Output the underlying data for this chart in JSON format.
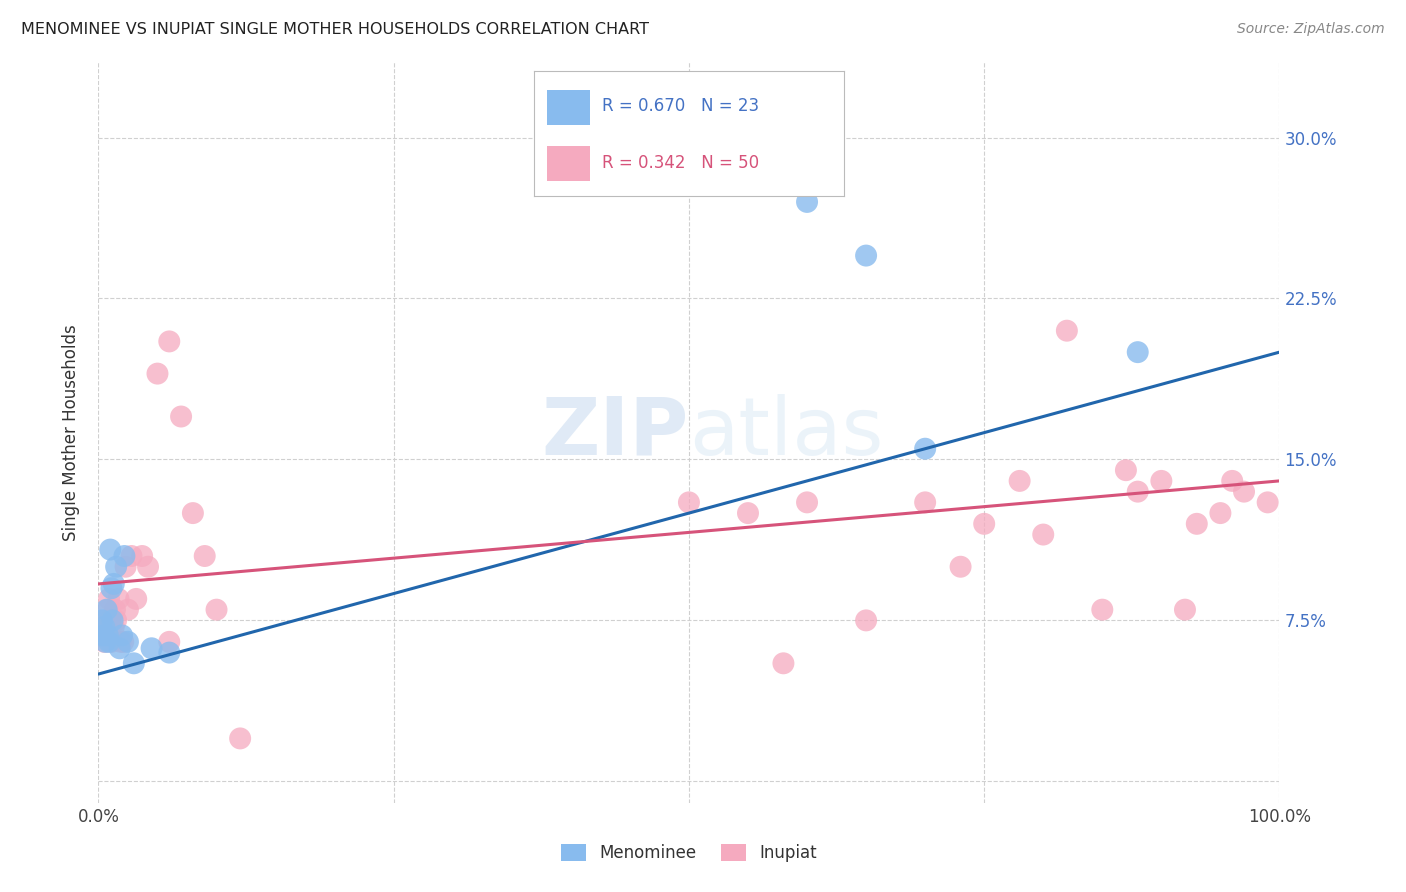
{
  "title": "MENOMINEE VS INUPIAT SINGLE MOTHER HOUSEHOLDS CORRELATION CHART",
  "source": "Source: ZipAtlas.com",
  "ylabel": "Single Mother Households",
  "xlim": [
    0.0,
    1.0
  ],
  "ylim": [
    -0.01,
    0.335
  ],
  "ytick_positions": [
    0.0,
    0.075,
    0.15,
    0.225,
    0.3
  ],
  "ytick_labels": [
    "",
    "7.5%",
    "15.0%",
    "22.5%",
    "30.0%"
  ],
  "grid_color": "#d0d0d0",
  "background_color": "#ffffff",
  "menominee_color": "#88bbee",
  "inupiat_color": "#f5aabf",
  "menominee_line_color": "#2166ac",
  "inupiat_line_color": "#d6537a",
  "menominee_R": 0.67,
  "menominee_N": 23,
  "inupiat_R": 0.342,
  "inupiat_N": 50,
  "menominee_points_x": [
    0.003,
    0.004,
    0.005,
    0.006,
    0.007,
    0.008,
    0.009,
    0.01,
    0.011,
    0.012,
    0.013,
    0.015,
    0.018,
    0.02,
    0.022,
    0.025,
    0.03,
    0.045,
    0.06,
    0.6,
    0.65,
    0.7,
    0.88
  ],
  "menominee_points_y": [
    0.075,
    0.068,
    0.072,
    0.065,
    0.08,
    0.068,
    0.065,
    0.108,
    0.09,
    0.075,
    0.092,
    0.1,
    0.062,
    0.068,
    0.105,
    0.065,
    0.055,
    0.062,
    0.06,
    0.27,
    0.245,
    0.155,
    0.2
  ],
  "inupiat_points_x": [
    0.003,
    0.004,
    0.005,
    0.006,
    0.007,
    0.008,
    0.009,
    0.01,
    0.011,
    0.013,
    0.014,
    0.015,
    0.017,
    0.019,
    0.021,
    0.023,
    0.025,
    0.028,
    0.032,
    0.037,
    0.042,
    0.05,
    0.06,
    0.07,
    0.08,
    0.09,
    0.1,
    0.12,
    0.06,
    0.5,
    0.55,
    0.58,
    0.6,
    0.65,
    0.7,
    0.73,
    0.75,
    0.78,
    0.8,
    0.82,
    0.85,
    0.87,
    0.88,
    0.9,
    0.92,
    0.93,
    0.95,
    0.96,
    0.97,
    0.99
  ],
  "inupiat_points_y": [
    0.068,
    0.072,
    0.065,
    0.075,
    0.068,
    0.08,
    0.085,
    0.075,
    0.065,
    0.072,
    0.08,
    0.075,
    0.085,
    0.065,
    0.065,
    0.1,
    0.08,
    0.105,
    0.085,
    0.105,
    0.1,
    0.19,
    0.205,
    0.17,
    0.125,
    0.105,
    0.08,
    0.02,
    0.065,
    0.13,
    0.125,
    0.055,
    0.13,
    0.075,
    0.13,
    0.1,
    0.12,
    0.14,
    0.115,
    0.21,
    0.08,
    0.145,
    0.135,
    0.14,
    0.08,
    0.12,
    0.125,
    0.14,
    0.135,
    0.13
  ],
  "menominee_line_x0": 0.0,
  "menominee_line_y0": 0.05,
  "menominee_line_x1": 1.0,
  "menominee_line_y1": 0.2,
  "inupiat_line_x0": 0.0,
  "inupiat_line_y0": 0.092,
  "inupiat_line_x1": 1.0,
  "inupiat_line_y1": 0.14
}
